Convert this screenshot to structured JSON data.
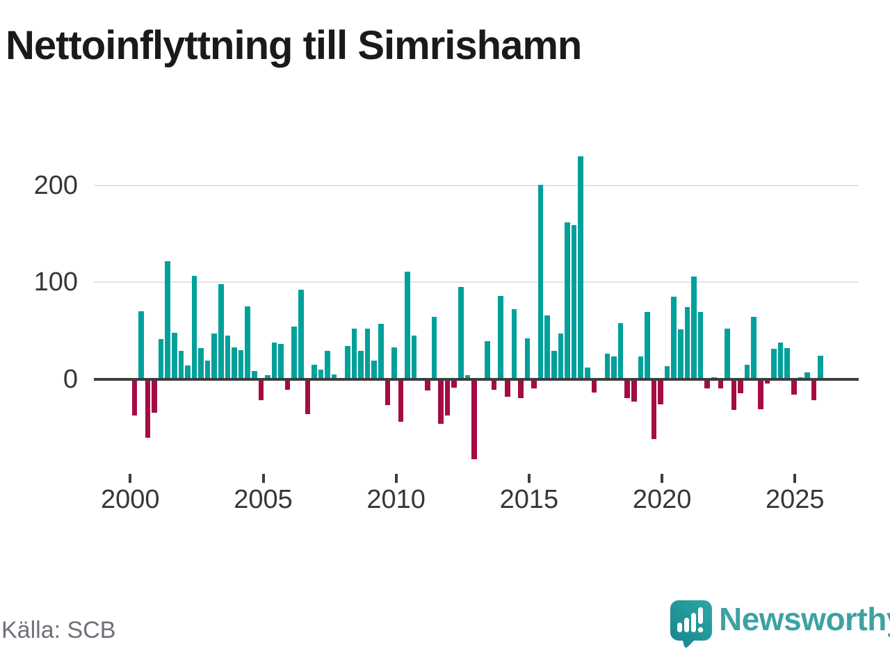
{
  "title": "Nettoinflyttning till Simrishamn",
  "source": "Källa: SCB",
  "logo": {
    "text": "Newsworthy"
  },
  "colors": {
    "positive": "#00a09b",
    "negative": "#a50b45",
    "grid": "#e3e3e3",
    "axis": "#3e3e3e",
    "logo_teal": "#3ea2a1",
    "logo_bubble_top": "#2ca8a4",
    "logo_bubble_bottom": "#15848f"
  },
  "chart_data": {
    "type": "bar",
    "title": "Nettoinflyttning till Simrishamn",
    "frequency": "quarterly",
    "start_year": 2000,
    "end_year": 2025,
    "unit": "persons (net migration per quarter)",
    "values": [
      -38,
      70,
      -61,
      -35,
      41,
      122,
      48,
      29,
      14,
      107,
      32,
      19,
      47,
      98,
      45,
      33,
      30,
      75,
      8,
      -22,
      4,
      38,
      36,
      -11,
      54,
      92,
      -36,
      15,
      10,
      29,
      5,
      0,
      34,
      52,
      29,
      52,
      19,
      57,
      -27,
      33,
      -44,
      111,
      45,
      0,
      -12,
      64,
      -46,
      -38,
      -9,
      95,
      4,
      -83,
      0,
      39,
      -11,
      86,
      -18,
      72,
      -20,
      42,
      -10,
      201,
      66,
      29,
      47,
      162,
      159,
      230,
      12,
      -14,
      0,
      26,
      23,
      58,
      -20,
      -23,
      23,
      69,
      -62,
      -26,
      13,
      85,
      51,
      74,
      106,
      69,
      -10,
      2,
      -10,
      52,
      -32,
      -15,
      15,
      64,
      -31,
      -5,
      31,
      38,
      32,
      -16,
      2,
      7,
      -22,
      24
    ],
    "yticks": [
      0,
      100,
      200
    ],
    "ytick_labels": [
      "0",
      "100",
      "200"
    ],
    "xticks": [
      2000,
      2005,
      2010,
      2015,
      2020,
      2025
    ],
    "xtick_labels": [
      "2000",
      "2005",
      "2010",
      "2015",
      "2020",
      "2025"
    ],
    "ylim": [
      -90,
      240
    ],
    "grid": true,
    "legend": "none"
  }
}
